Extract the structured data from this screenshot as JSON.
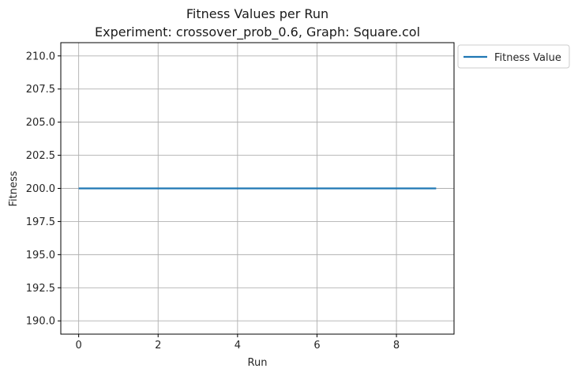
{
  "chart_data": {
    "type": "line",
    "title": "Fitness Values per Run",
    "subtitle": "Experiment: crossover_prob_0.6, Graph: Square.col",
    "xlabel": "Run",
    "ylabel": "Fitness",
    "xlim": [
      -0.45,
      9.45
    ],
    "ylim": [
      189.0,
      211.0
    ],
    "xticks": [
      0,
      2,
      4,
      6,
      8
    ],
    "xtick_labels": [
      "0",
      "2",
      "4",
      "6",
      "8"
    ],
    "yticks": [
      190.0,
      192.5,
      195.0,
      197.5,
      200.0,
      202.5,
      205.0,
      207.5,
      210.0
    ],
    "ytick_labels": [
      "190.0",
      "192.5",
      "195.0",
      "197.5",
      "200.0",
      "202.5",
      "205.0",
      "207.5",
      "210.0"
    ],
    "grid": true,
    "legend_position": "outside-top-right",
    "series": [
      {
        "name": "Fitness Value",
        "color": "#1f77b4",
        "x": [
          0,
          1,
          2,
          3,
          4,
          5,
          6,
          7,
          8,
          9
        ],
        "values": [
          200,
          200,
          200,
          200,
          200,
          200,
          200,
          200,
          200,
          200
        ]
      }
    ]
  }
}
